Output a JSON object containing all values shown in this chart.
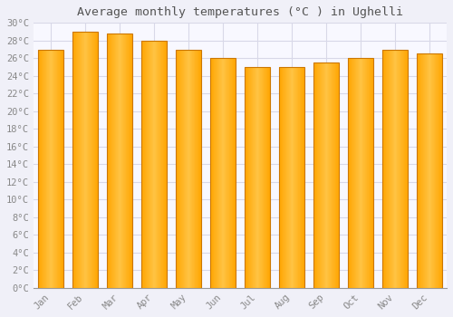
{
  "title": "Average monthly temperatures (°C ) in Ughelli",
  "months": [
    "Jan",
    "Feb",
    "Mar",
    "Apr",
    "May",
    "Jun",
    "Jul",
    "Aug",
    "Sep",
    "Oct",
    "Nov",
    "Dec"
  ],
  "values": [
    27.0,
    29.0,
    28.8,
    28.0,
    27.0,
    26.0,
    25.0,
    25.0,
    25.5,
    26.0,
    27.0,
    26.5
  ],
  "bar_color_main": "#FFA500",
  "bar_color_light": "#FFD060",
  "bar_color_dark": "#E08000",
  "bar_edge_color": "#CC7700",
  "background_color": "#f0f0f8",
  "plot_bg_color": "#f8f8ff",
  "grid_color": "#d8d8e8",
  "text_color": "#888888",
  "title_color": "#555555",
  "ylim": [
    0,
    30
  ],
  "ytick_step": 2,
  "title_fontsize": 9.5,
  "tick_fontsize": 7.5,
  "font_family": "monospace"
}
